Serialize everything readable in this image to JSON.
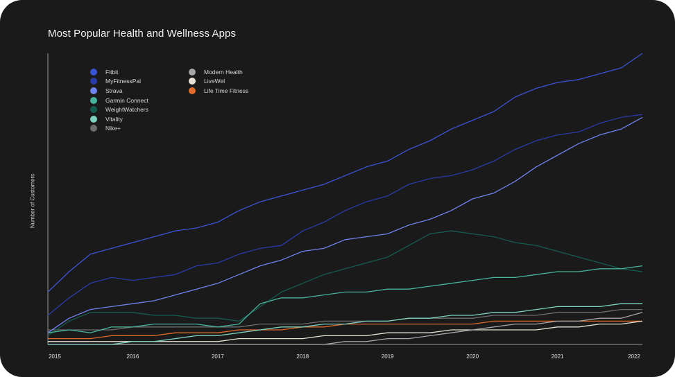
{
  "chart_data": {
    "type": "line",
    "title": "Most Popular Health and Wellness Apps",
    "xlabel": "",
    "ylabel": "Number of Customers",
    "xlim": [
      2015,
      2022
    ],
    "ylim": [
      0,
      100
    ],
    "grid": false,
    "legend_position": "top-left",
    "x_ticks": [
      "2015",
      "2016",
      "2017",
      "2018",
      "2019",
      "2020",
      "2021",
      "2022"
    ],
    "x": [
      2015.0,
      2015.25,
      2015.5,
      2015.75,
      2016.0,
      2016.25,
      2016.5,
      2016.75,
      2017.0,
      2017.25,
      2017.5,
      2017.75,
      2018.0,
      2018.25,
      2018.5,
      2018.75,
      2019.0,
      2019.25,
      2019.5,
      2019.75,
      2020.0,
      2020.25,
      2020.5,
      2020.75,
      2021.0,
      2021.25,
      2021.5,
      2021.75,
      2022.0
    ],
    "series": [
      {
        "name": "Fitbit",
        "color": "#3b54d6",
        "values": [
          18,
          25,
          31,
          33,
          35,
          37,
          39,
          40,
          42,
          46,
          49,
          51,
          53,
          55,
          58,
          61,
          63,
          67,
          70,
          74,
          77,
          80,
          85,
          88,
          90,
          91,
          93,
          95,
          100
        ]
      },
      {
        "name": "MyFitnessPal",
        "color": "#2a3ba8",
        "values": [
          10,
          16,
          21,
          23,
          22,
          23,
          24,
          27,
          28,
          31,
          33,
          34,
          39,
          42,
          46,
          49,
          51,
          55,
          57,
          58,
          60,
          63,
          67,
          70,
          72,
          73,
          76,
          78,
          79
        ]
      },
      {
        "name": "Strava",
        "color": "#7082ee",
        "values": [
          4,
          9,
          12,
          13,
          14,
          15,
          17,
          19,
          21,
          24,
          27,
          29,
          32,
          33,
          36,
          37,
          38,
          41,
          43,
          46,
          50,
          52,
          56,
          61,
          65,
          69,
          72,
          74,
          78
        ]
      },
      {
        "name": "Garmin Connect",
        "color": "#46b39b",
        "values": [
          4,
          5,
          4,
          6,
          6,
          7,
          7,
          7,
          6,
          7,
          14,
          16,
          16,
          17,
          18,
          18,
          19,
          19,
          20,
          21,
          22,
          23,
          23,
          24,
          25,
          25,
          26,
          26,
          27
        ]
      },
      {
        "name": "WeightWatchers",
        "color": "#155c50",
        "values": [
          3,
          8,
          11,
          11,
          11,
          10,
          10,
          9,
          9,
          8,
          13,
          18,
          21,
          24,
          26,
          28,
          30,
          34,
          38,
          39,
          38,
          37,
          35,
          34,
          32,
          30,
          28,
          26,
          25
        ]
      },
      {
        "name": "Vitality",
        "color": "#7dd3c0",
        "values": [
          0,
          0,
          0,
          0,
          1,
          1,
          2,
          3,
          3,
          4,
          5,
          6,
          6,
          7,
          7,
          8,
          8,
          9,
          9,
          10,
          10,
          11,
          11,
          12,
          13,
          13,
          13,
          14,
          14
        ]
      },
      {
        "name": "Nike+",
        "color": "#6d6d6d",
        "values": [
          5,
          5,
          5,
          5,
          6,
          6,
          6,
          6,
          6,
          6,
          7,
          7,
          7,
          8,
          8,
          8,
          8,
          9,
          9,
          9,
          9,
          10,
          10,
          10,
          11,
          11,
          11,
          12,
          12
        ]
      },
      {
        "name": "Modern Health",
        "color": "#a6a6a6",
        "values": [
          0,
          0,
          0,
          0,
          0,
          0,
          0,
          0,
          0,
          0,
          0,
          0,
          0,
          0,
          1,
          1,
          2,
          2,
          3,
          4,
          5,
          6,
          7,
          7,
          8,
          8,
          9,
          9,
          11
        ]
      },
      {
        "name": "LiveWel",
        "color": "#e8e2d6",
        "values": [
          1,
          1,
          1,
          1,
          1,
          1,
          1,
          1,
          1,
          2,
          2,
          2,
          2,
          3,
          3,
          3,
          4,
          4,
          4,
          5,
          5,
          5,
          5,
          5,
          6,
          6,
          7,
          7,
          8
        ]
      },
      {
        "name": "Life Time Fitness",
        "color": "#e06a2a",
        "values": [
          2,
          2,
          2,
          3,
          3,
          3,
          4,
          4,
          4,
          5,
          5,
          5,
          6,
          6,
          7,
          7,
          7,
          7,
          7,
          7,
          7,
          8,
          8,
          8,
          8,
          8,
          8,
          8,
          8
        ]
      }
    ]
  }
}
